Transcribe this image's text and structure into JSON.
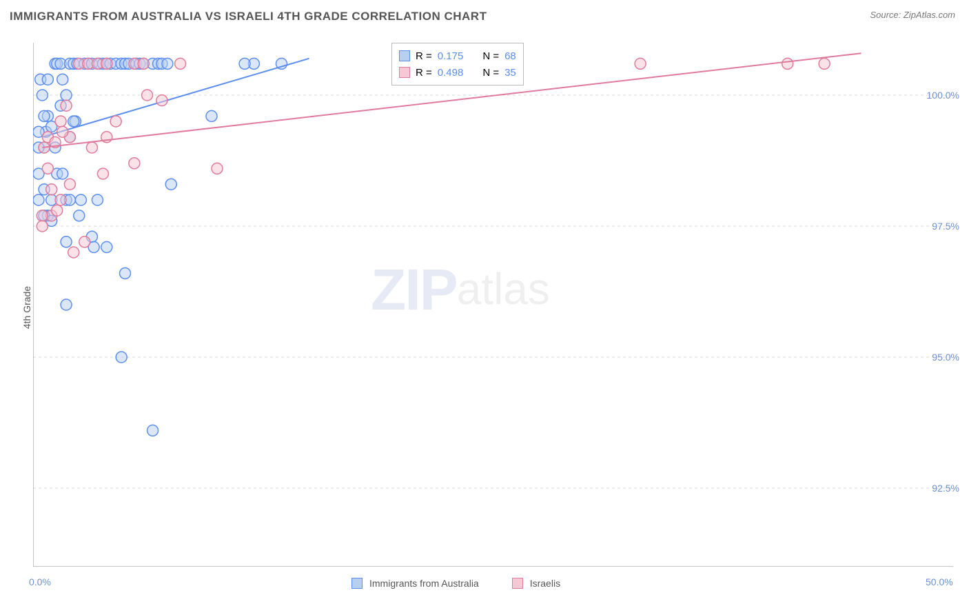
{
  "title": "IMMIGRANTS FROM AUSTRALIA VS ISRAELI 4TH GRADE CORRELATION CHART",
  "source": "Source: ZipAtlas.com",
  "ylabel": "4th Grade",
  "watermark": {
    "zip": "ZIP",
    "atlas": "atlas"
  },
  "chart": {
    "type": "scatter",
    "xlim": [
      0,
      50
    ],
    "ylim": [
      91,
      101
    ],
    "xticks": [
      0,
      5,
      10,
      15,
      20,
      25,
      30,
      35,
      40,
      45,
      50
    ],
    "xtick_labels": {
      "0": "0.0%",
      "50": "50.0%"
    },
    "yticks": [
      92.5,
      95.0,
      97.5,
      100.0
    ],
    "ytick_labels": [
      "92.5%",
      "95.0%",
      "97.5%",
      "100.0%"
    ],
    "grid_color": "#d9d9d9",
    "axis_color": "#888888",
    "background_color": "#ffffff",
    "marker_radius": 8,
    "marker_stroke_width": 1.5,
    "line_width": 2
  },
  "series": [
    {
      "id": "aus",
      "label": "Immigrants from Australia",
      "fill": "#b8d0f0",
      "stroke": "#5b8def",
      "fill_opacity": 0.5,
      "R": "0.175",
      "N": "68",
      "trend": {
        "x1": 0.5,
        "y1": 99.2,
        "x2": 15,
        "y2": 100.7
      },
      "points": [
        [
          0.6,
          99.0
        ],
        [
          0.7,
          99.3
        ],
        [
          0.8,
          99.6
        ],
        [
          1.0,
          99.4
        ],
        [
          1.2,
          100.6
        ],
        [
          1.3,
          100.6
        ],
        [
          1.5,
          100.6
        ],
        [
          1.0,
          98.0
        ],
        [
          1.2,
          99.0
        ],
        [
          0.8,
          97.7
        ],
        [
          0.6,
          97.7
        ],
        [
          0.6,
          98.2
        ],
        [
          1.5,
          99.8
        ],
        [
          1.8,
          100.0
        ],
        [
          2.0,
          100.6
        ],
        [
          2.2,
          100.6
        ],
        [
          2.4,
          100.6
        ],
        [
          2.8,
          100.6
        ],
        [
          3.0,
          100.6
        ],
        [
          3.2,
          100.6
        ],
        [
          3.6,
          100.6
        ],
        [
          3.8,
          100.6
        ],
        [
          4.0,
          100.6
        ],
        [
          4.2,
          100.6
        ],
        [
          4.5,
          100.6
        ],
        [
          4.8,
          100.6
        ],
        [
          5.0,
          100.6
        ],
        [
          5.2,
          100.6
        ],
        [
          5.6,
          100.6
        ],
        [
          5.8,
          100.6
        ],
        [
          6.0,
          100.6
        ],
        [
          6.5,
          100.6
        ],
        [
          6.8,
          100.6
        ],
        [
          7.0,
          100.6
        ],
        [
          7.3,
          100.6
        ],
        [
          1.3,
          98.5
        ],
        [
          1.6,
          98.5
        ],
        [
          1.8,
          98.0
        ],
        [
          2.0,
          98.0
        ],
        [
          2.6,
          98.0
        ],
        [
          2.0,
          99.2
        ],
        [
          2.3,
          99.5
        ],
        [
          3.5,
          98.0
        ],
        [
          12.0,
          100.6
        ],
        [
          13.5,
          100.6
        ],
        [
          9.7,
          99.6
        ],
        [
          7.5,
          98.3
        ],
        [
          1.8,
          97.2
        ],
        [
          2.5,
          97.7
        ],
        [
          3.2,
          97.3
        ],
        [
          4.0,
          97.1
        ],
        [
          1.0,
          97.6
        ],
        [
          0.3,
          99.0
        ],
        [
          0.3,
          99.3
        ],
        [
          0.3,
          98.5
        ],
        [
          0.3,
          98.0
        ],
        [
          0.6,
          99.6
        ],
        [
          0.5,
          100.0
        ],
        [
          0.4,
          100.3
        ],
        [
          0.8,
          100.3
        ],
        [
          1.6,
          100.3
        ],
        [
          5.0,
          96.6
        ],
        [
          4.8,
          95.0
        ],
        [
          1.8,
          96.0
        ],
        [
          3.3,
          97.1
        ],
        [
          6.5,
          93.6
        ],
        [
          2.2,
          99.5
        ],
        [
          11.5,
          100.6
        ]
      ]
    },
    {
      "id": "isr",
      "label": "Israelis",
      "fill": "#f4c8d4",
      "stroke": "#e07a9a",
      "fill_opacity": 0.5,
      "R": "0.498",
      "N": "35",
      "trend": {
        "x1": 0.5,
        "y1": 99.0,
        "x2": 45,
        "y2": 100.8
      },
      "points": [
        [
          0.6,
          99.0
        ],
        [
          0.8,
          99.2
        ],
        [
          1.2,
          99.1
        ],
        [
          1.5,
          99.5
        ],
        [
          1.8,
          99.8
        ],
        [
          1.0,
          98.2
        ],
        [
          1.5,
          98.0
        ],
        [
          2.0,
          99.2
        ],
        [
          2.5,
          100.6
        ],
        [
          3.0,
          100.6
        ],
        [
          3.5,
          100.6
        ],
        [
          4.0,
          100.6
        ],
        [
          5.5,
          100.6
        ],
        [
          6.0,
          100.6
        ],
        [
          7.0,
          99.9
        ],
        [
          8.0,
          100.6
        ],
        [
          4.5,
          99.5
        ],
        [
          3.8,
          98.5
        ],
        [
          33.0,
          100.6
        ],
        [
          41.0,
          100.6
        ],
        [
          43.0,
          100.6
        ],
        [
          5.5,
          98.7
        ],
        [
          3.2,
          99.0
        ],
        [
          1.0,
          97.7
        ],
        [
          0.5,
          97.7
        ],
        [
          0.5,
          97.5
        ],
        [
          2.8,
          97.2
        ],
        [
          2.0,
          98.3
        ],
        [
          2.2,
          97.0
        ],
        [
          10.0,
          98.6
        ],
        [
          6.2,
          100.0
        ],
        [
          4.0,
          99.2
        ],
        [
          1.3,
          97.8
        ],
        [
          1.6,
          99.3
        ],
        [
          0.8,
          98.6
        ]
      ]
    }
  ],
  "legend_stats": {
    "r_prefix": "R =",
    "n_prefix": "N ="
  },
  "bottom_legend": [
    {
      "series": "aus"
    },
    {
      "series": "isr"
    }
  ]
}
